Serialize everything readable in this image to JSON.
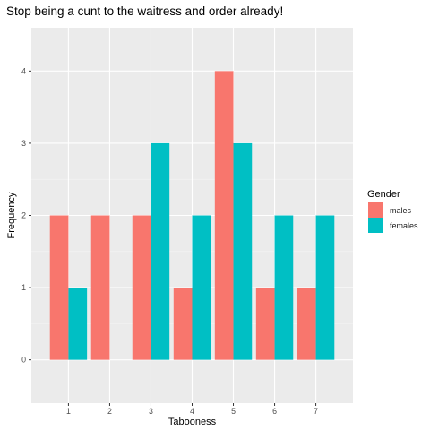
{
  "chart_data": {
    "type": "bar",
    "title": "Stop being a cunt to the waitress and order already!",
    "xlabel": "Tabooness",
    "ylabel": "Frequency",
    "categories": [
      "1",
      "2",
      "3",
      "4",
      "5",
      "6",
      "7"
    ],
    "series": [
      {
        "name": "males",
        "color": "#F8766D",
        "values": [
          2,
          2,
          2,
          1,
          4,
          1,
          1
        ]
      },
      {
        "name": "females",
        "color": "#00BFC4",
        "values": [
          1,
          0,
          3,
          2,
          3,
          2,
          2
        ]
      }
    ],
    "yticks": [
      "0",
      "1",
      "2",
      "3",
      "4"
    ],
    "ylim": [
      -0.6,
      4.6
    ],
    "xlim": [
      0.1,
      7.9
    ],
    "legend": {
      "title": "Gender",
      "placement": "right"
    },
    "grid": true,
    "panel_color": "#EBEBEB"
  }
}
